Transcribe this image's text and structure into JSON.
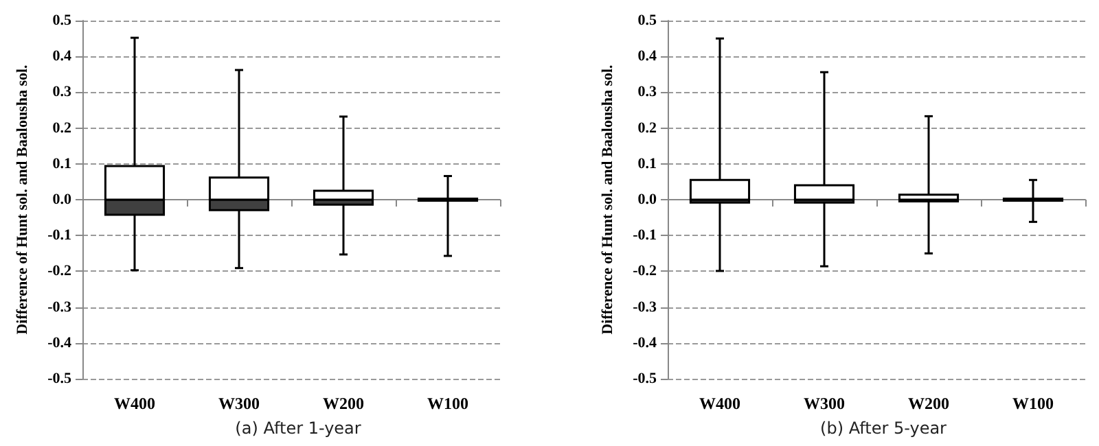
{
  "chart_data": [
    {
      "type": "box",
      "title": "(a) After 1-year",
      "ylabel": "Difference of Hunt sol. and Baalousha sol.",
      "categories": [
        "W400",
        "W300",
        "W200",
        "W100"
      ],
      "series": [
        {
          "color": "#404040",
          "boxes": [
            {
              "low": -0.197,
              "q1": -0.042,
              "median": 0,
              "q3": 0.094,
              "high": 0.452
            },
            {
              "low": -0.191,
              "q1": -0.029,
              "median": 0,
              "q3": 0.062,
              "high": 0.362
            },
            {
              "low": -0.153,
              "q1": -0.014,
              "median": 0,
              "q3": 0.025,
              "high": 0.232
            },
            {
              "low": -0.157,
              "q1": -0.003,
              "median": 0,
              "q3": 0.003,
              "high": 0.066
            }
          ]
        }
      ],
      "ylim": [
        -0.5,
        0.5
      ],
      "yticks": [
        -0.5,
        -0.4,
        -0.3,
        -0.2,
        -0.1,
        {
          "value": 0,
          "label": "0.0"
        },
        0.1,
        0.2,
        0.3,
        0.4,
        0.5
      ],
      "grid": "y"
    },
    {
      "type": "box",
      "title": "(b) After 5-year",
      "ylabel": "Difference of Hunt sol. and Baalousha sol.",
      "categories": [
        "W400",
        "W300",
        "W200",
        "W100"
      ],
      "series": [
        {
          "color": "#404040",
          "boxes": [
            {
              "low": -0.199,
              "q1": -0.008,
              "median": 0,
              "q3": 0.055,
              "high": 0.45
            },
            {
              "low": -0.186,
              "q1": -0.008,
              "median": 0,
              "q3": 0.04,
              "high": 0.356
            },
            {
              "low": -0.15,
              "q1": -0.005,
              "median": 0,
              "q3": 0.014,
              "high": 0.233
            },
            {
              "low": -0.062,
              "q1": -0.003,
              "median": 0,
              "q3": 0.003,
              "high": 0.055
            }
          ]
        }
      ],
      "ylim": [
        -0.5,
        0.5
      ],
      "yticks": [
        -0.5,
        -0.4,
        -0.3,
        -0.2,
        -0.1,
        {
          "value": 0,
          "label": "0.0"
        },
        0.1,
        0.2,
        0.3,
        0.4,
        0.5
      ],
      "grid": "y"
    }
  ]
}
